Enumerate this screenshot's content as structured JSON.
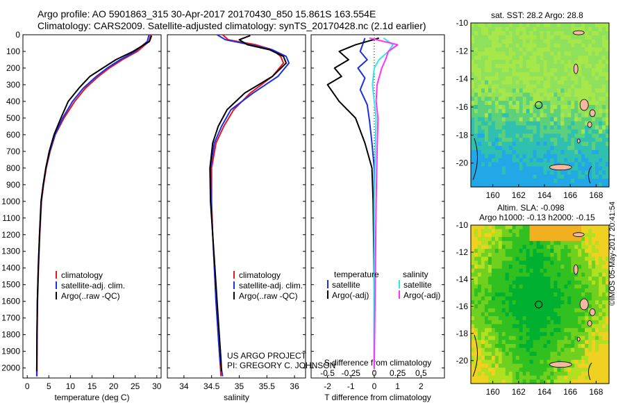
{
  "header": {
    "title_line1": "Argo profile: AO 5901863_315 30-Apr-2017 20170430_850 15.861S 163.554E",
    "title_line2": "Climatology: CARS2009. Satellite-adjusted climatology: synTS_20170428.nc (2.1d earlier)"
  },
  "map_titles": {
    "sst": "sat. SST: 28.2 Argo: 28.8",
    "sla_line1": "Altim. SLA: -0.098",
    "sla_line2": "Argo h1000: -0.13 h2000: -0.15"
  },
  "credits": {
    "line1": "US ARGO PROJECT",
    "line2": "PI: GREGORY C. JOHNSON"
  },
  "timestamp": "©IMOS 05-May-2017 20:41:54",
  "colors": {
    "climatology": "#e8141e",
    "satellite": "#1a2ee6",
    "argo": "#000000",
    "sat_salinity": "#33e6e6",
    "argo_salinity": "#ff33ff"
  },
  "chart_data": [
    {
      "type": "line",
      "xlabel": "temperature (deg C)",
      "ylabel": "",
      "xlim": [
        -1,
        31
      ],
      "ylim": [
        2060,
        0
      ],
      "xticks": [
        0,
        5,
        10,
        15,
        20,
        25,
        30
      ],
      "yticks": [
        0,
        100,
        200,
        300,
        400,
        500,
        600,
        700,
        800,
        900,
        1000,
        1100,
        1200,
        1300,
        1400,
        1500,
        1600,
        1700,
        1800,
        1900,
        2000
      ],
      "legend": [
        "climatology",
        "satellite-adj. clim.",
        "Argo(..raw -QC)"
      ],
      "series": [
        {
          "name": "climatology",
          "x": [
            28.6,
            28.2,
            25.5,
            22,
            19,
            16.5,
            13.5,
            11,
            8.5,
            6.5,
            5.3,
            4.4,
            3.8,
            3.3,
            2.9,
            2.6,
            2.4,
            2.3,
            2.25
          ],
          "y": [
            0,
            40,
            100,
            150,
            200,
            250,
            320,
            400,
            500,
            600,
            700,
            800,
            900,
            1000,
            1200,
            1400,
            1600,
            1800,
            2050
          ]
        },
        {
          "name": "satellite-adj. clim.",
          "x": [
            28.2,
            27.8,
            25,
            21.5,
            18.5,
            16,
            13,
            10.5,
            8.2,
            6.4,
            5.2,
            4.3,
            3.7,
            3.25,
            2.85,
            2.55,
            2.35,
            2.25,
            2.2
          ],
          "y": [
            0,
            40,
            100,
            150,
            200,
            250,
            320,
            400,
            500,
            600,
            700,
            800,
            900,
            1000,
            1200,
            1400,
            1600,
            1800,
            2050
          ]
        },
        {
          "name": "Argo(..raw -QC)",
          "x": [
            28.8,
            28.3,
            24.5,
            20.5,
            17.5,
            14.5,
            12,
            9.5,
            7.8,
            6.2,
            5.1,
            4.3,
            3.7,
            3.2,
            2.85,
            2.55,
            2.35,
            2.25,
            2.2
          ],
          "y": [
            5,
            40,
            100,
            150,
            200,
            250,
            320,
            400,
            500,
            600,
            700,
            800,
            900,
            1000,
            1200,
            1400,
            1600,
            1800,
            2020
          ]
        }
      ]
    },
    {
      "type": "line",
      "xlabel": "salinity",
      "ylabel": "",
      "xlim": [
        33.7,
        36.2
      ],
      "ylim": [
        2060,
        0
      ],
      "xticks": [
        34,
        34.5,
        35,
        35.5,
        36
      ],
      "legend": [
        "climatology",
        "satellite-adj. clim.",
        "Argo(..raw -QC)"
      ],
      "series": [
        {
          "name": "climatology",
          "x": [
            34.7,
            34.8,
            35.3,
            35.6,
            35.75,
            35.8,
            35.6,
            35.2,
            34.9,
            34.72,
            34.58,
            34.5,
            34.5,
            34.52,
            34.55,
            34.58,
            34.62,
            34.65,
            34.67
          ],
          "y": [
            0,
            30,
            60,
            90,
            130,
            170,
            250,
            350,
            450,
            550,
            650,
            800,
            1000,
            1200,
            1400,
            1600,
            1800,
            1950,
            2050
          ]
        },
        {
          "name": "satellite-adj. clim.",
          "x": [
            34.6,
            34.75,
            35.2,
            35.6,
            35.85,
            35.9,
            35.7,
            35.25,
            34.85,
            34.68,
            34.55,
            34.48,
            34.49,
            34.52,
            34.55,
            34.58,
            34.62,
            34.65,
            34.7
          ],
          "y": [
            0,
            30,
            60,
            90,
            130,
            170,
            250,
            350,
            450,
            550,
            650,
            800,
            1000,
            1200,
            1400,
            1600,
            1800,
            1950,
            2050
          ]
        },
        {
          "name": "Argo(..raw -QC)",
          "x": [
            35.2,
            35.0,
            35.15,
            35.55,
            35.8,
            35.85,
            35.6,
            35.1,
            34.78,
            34.62,
            34.52,
            34.47,
            34.48,
            34.52,
            34.56,
            34.6,
            34.64,
            34.67,
            34.68
          ],
          "y": [
            5,
            30,
            60,
            90,
            130,
            170,
            250,
            350,
            450,
            550,
            650,
            800,
            1000,
            1200,
            1400,
            1600,
            1800,
            1950,
            2020
          ]
        }
      ]
    },
    {
      "type": "line",
      "xlabel": "T difference from climatology",
      "xlabel2": "S difference from climatology",
      "ylabel": "",
      "xlim": [
        -2.7,
        3.0
      ],
      "xlim_salinity": [
        -0.675,
        0.75
      ],
      "ylim": [
        2060,
        0
      ],
      "xticks": [
        -2,
        -1,
        0,
        1,
        2
      ],
      "xticks_salinity_labels": [
        "-0.5",
        "-0.25",
        "0",
        "0.25",
        "0.5"
      ],
      "legend": [
        "temperature",
        "satellite",
        "Argo(-adj)",
        "salinity",
        "satellite",
        "Argo(-adj)"
      ],
      "series": [
        {
          "name": "temperature satellite",
          "x": [
            -0.4,
            -0.5,
            -0.6,
            -0.3,
            -0.7,
            -0.4,
            -0.6,
            -0.3,
            -0.2,
            -0.1,
            0,
            0,
            0,
            0
          ],
          "y": [
            20,
            60,
            100,
            150,
            200,
            260,
            330,
            420,
            520,
            650,
            800,
            1100,
            1500,
            2000
          ]
        },
        {
          "name": "temperature Argo(-adj)",
          "x": [
            0.2,
            -0.8,
            -1.5,
            -1.1,
            -1.7,
            -1.4,
            -2.0,
            -1.5,
            -0.8,
            -0.4,
            -0.1,
            -0.05,
            0,
            0
          ],
          "y": [
            20,
            60,
            100,
            150,
            200,
            250,
            300,
            400,
            500,
            650,
            800,
            1000,
            1500,
            2000
          ]
        },
        {
          "name": "salinity satellite",
          "x": [
            0.1,
            0.2,
            0.15,
            0.05,
            0,
            -0.02,
            0,
            0.02,
            0.01,
            0,
            0,
            0
          ],
          "y": [
            20,
            60,
            100,
            150,
            200,
            300,
            400,
            500,
            700,
            1000,
            1500,
            2000
          ]
        },
        {
          "name": "salinity Argo(-adj)",
          "x": [
            -0.05,
            0.25,
            0.15,
            0.12,
            0.08,
            0.03,
            0.02,
            0.04,
            0.03,
            0.02,
            0.01,
            0
          ],
          "y": [
            20,
            60,
            100,
            150,
            200,
            300,
            400,
            500,
            700,
            1000,
            1500,
            2000
          ]
        }
      ]
    }
  ],
  "maps": {
    "lon_ticks": [
      "160",
      "162",
      "164",
      "166",
      "168"
    ],
    "lat_ticks": [
      "-10",
      "-12",
      "-14",
      "-16",
      "-18",
      "-20"
    ],
    "marker": {
      "lon": 163.554,
      "lat": -15.861
    }
  }
}
